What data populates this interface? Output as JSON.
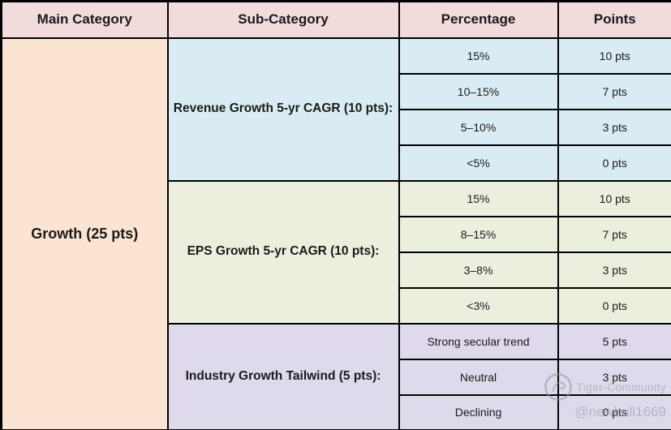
{
  "table": {
    "headers": [
      "Main Category",
      "Sub-Category",
      "Percentage",
      "Points"
    ],
    "main_category": "Growth (25 pts)",
    "sections": [
      {
        "name": "Revenue Growth 5-yr CAGR (10 pts):",
        "rows": [
          {
            "percentage": "15%",
            "points": "10 pts"
          },
          {
            "percentage": "10–15%",
            "points": "7 pts"
          },
          {
            "percentage": "5–10%",
            "points": "3 pts"
          },
          {
            "percentage": "<5%",
            "points": "0 pts"
          }
        ]
      },
      {
        "name": "EPS Growth 5-yr CAGR (10 pts):",
        "rows": [
          {
            "percentage": "15%",
            "points": "10 pts"
          },
          {
            "percentage": "8–15%",
            "points": "7 pts"
          },
          {
            "percentage": "3–8%",
            "points": "3 pts"
          },
          {
            "percentage": "<3%",
            "points": "0 pts"
          }
        ]
      },
      {
        "name": "Industry Growth Tailwind (5 pts):",
        "rows": [
          {
            "percentage": "Strong secular trend",
            "points": "5 pts"
          },
          {
            "percentage": "Neutral",
            "points": "3 pts"
          },
          {
            "percentage": "Declining",
            "points": "0 pts"
          }
        ]
      }
    ]
  },
  "chart_data": {
    "type": "table",
    "title": "",
    "columns": [
      "Main Category",
      "Sub-Category",
      "Percentage",
      "Points"
    ],
    "rows": [
      [
        "Growth (25 pts)",
        "Revenue Growth 5-yr CAGR (10 pts):",
        "15%",
        "10 pts"
      ],
      [
        "Growth (25 pts)",
        "Revenue Growth 5-yr CAGR (10 pts):",
        "10–15%",
        "7 pts"
      ],
      [
        "Growth (25 pts)",
        "Revenue Growth 5-yr CAGR (10 pts):",
        "5–10%",
        "3 pts"
      ],
      [
        "Growth (25 pts)",
        "Revenue Growth 5-yr CAGR (10 pts):",
        "<5%",
        "0 pts"
      ],
      [
        "Growth (25 pts)",
        "EPS Growth 5-yr CAGR (10 pts):",
        "15%",
        "10 pts"
      ],
      [
        "Growth (25 pts)",
        "EPS Growth 5-yr CAGR (10 pts):",
        "8–15%",
        "7 pts"
      ],
      [
        "Growth (25 pts)",
        "EPS Growth 5-yr CAGR (10 pts):",
        "3–8%",
        "3 pts"
      ],
      [
        "Growth (25 pts)",
        "EPS Growth 5-yr CAGR (10 pts):",
        "<3%",
        "0 pts"
      ],
      [
        "Growth (25 pts)",
        "Industry Growth Tailwind (5 pts):",
        "Strong secular trend",
        "5 pts"
      ],
      [
        "Growth (25 pts)",
        "Industry Growth Tailwind (5 pts):",
        "Neutral",
        "3 pts"
      ],
      [
        "Growth (25 pts)",
        "Industry Growth Tailwind (5 pts):",
        "Declining",
        "0 pts"
      ]
    ]
  },
  "watermark": {
    "community": "Tiger-Community",
    "handle": "@newbull1669"
  },
  "colors": {
    "header-bg": "#f2dcdb",
    "main-bg": "#fce4d2",
    "revenue-bg": "#daecf3",
    "eps-bg": "#ebf0de",
    "industry-bg": "#dedaeb",
    "border": "#000000",
    "text": "#1a1a1a",
    "watermark": "#9a98a8"
  }
}
